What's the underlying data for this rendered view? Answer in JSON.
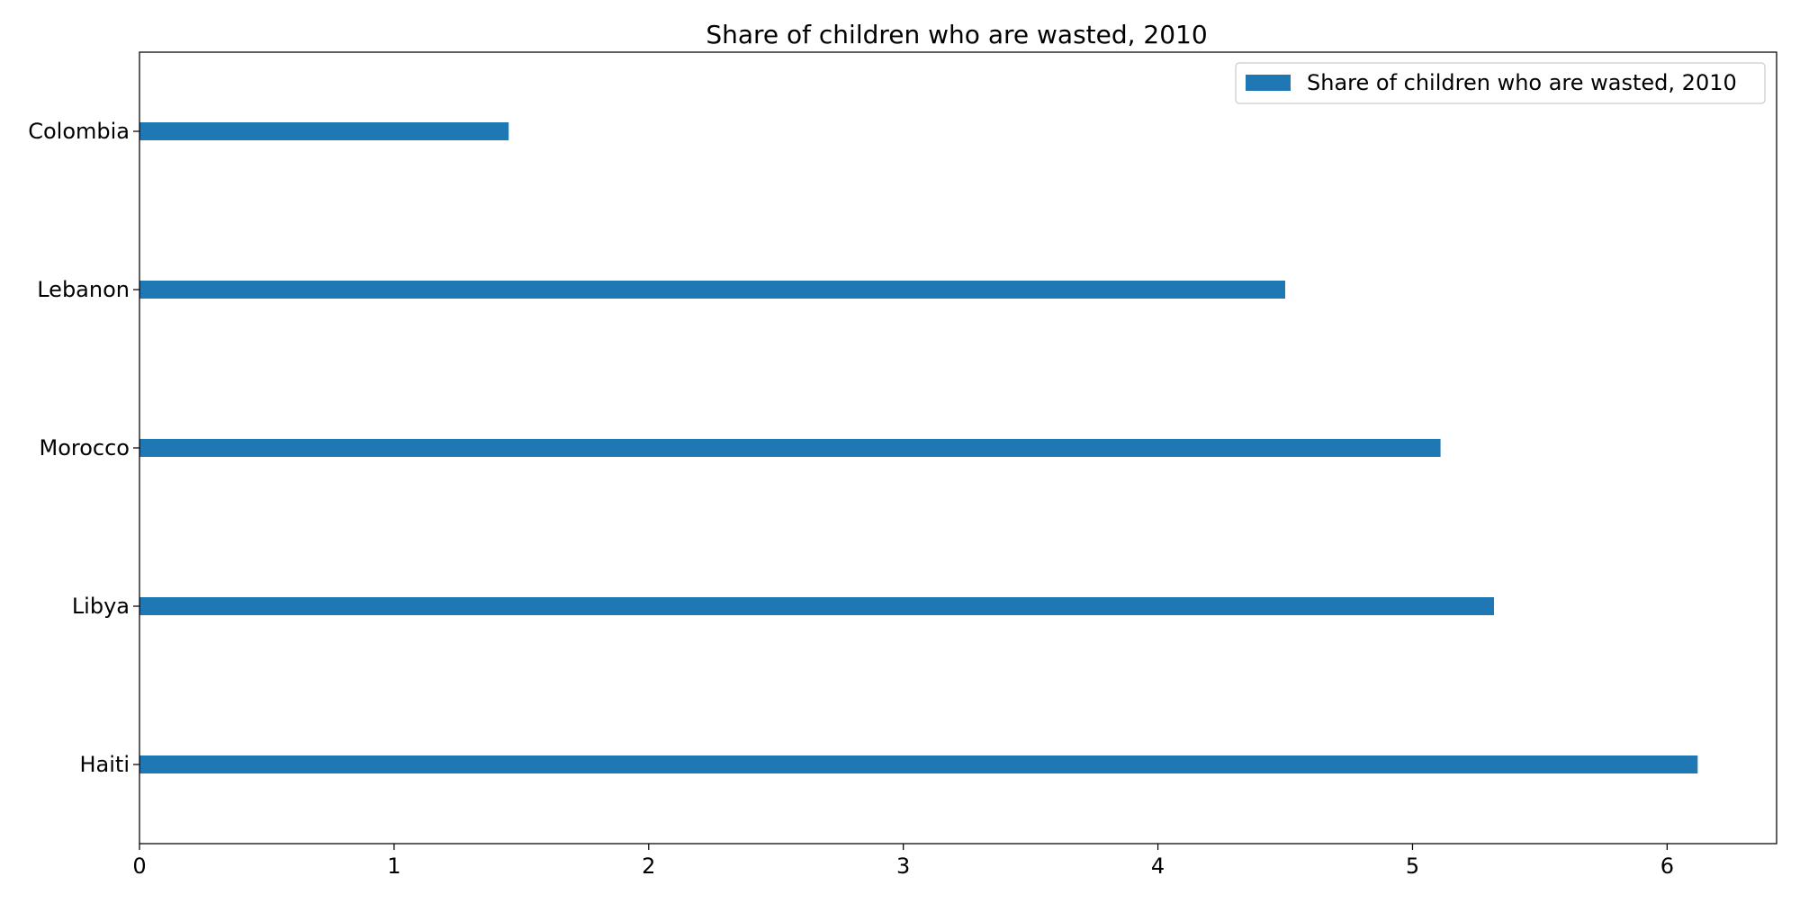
{
  "chart_data": {
    "type": "bar",
    "orientation": "horizontal",
    "title": "Share of children who are wasted, 2010",
    "xlabel": "",
    "ylabel": "",
    "categories": [
      "Colombia",
      "Lebanon",
      "Morocco",
      "Libya",
      "Haiti"
    ],
    "series": [
      {
        "name": "Share of children who are wasted, 2010",
        "values": [
          1.45,
          4.5,
          5.11,
          5.32,
          6.12
        ],
        "color": "#1f77b4"
      }
    ],
    "xlim": [
      0,
      6.43
    ],
    "xticks": [
      0,
      1,
      2,
      3,
      4,
      5,
      6
    ],
    "grid": false,
    "legend_position": "top-right"
  }
}
